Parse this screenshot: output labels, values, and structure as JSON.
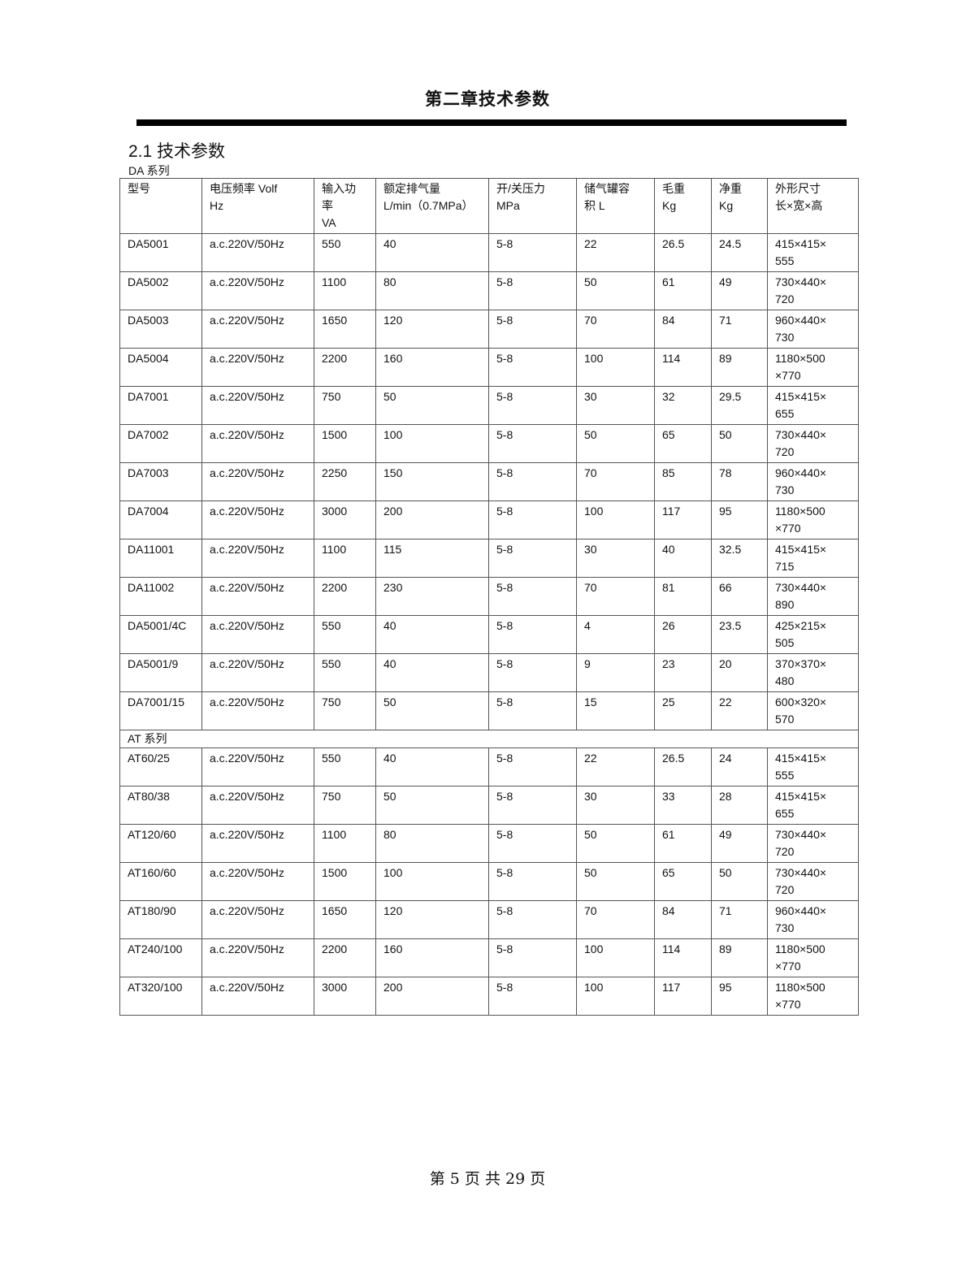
{
  "title": "第二章技术参数",
  "section": "2.1  技术参数",
  "da_series_label": "DA 系列",
  "at_series_label": "AT 系列",
  "headers": [
    "型号",
    "电压频率 Volf\nHz",
    "输入功\n率\nVA",
    "额定排气量\nL/min（0.7MPa）",
    "开/关压力\nMPa",
    "储气罐容\n积 L",
    "毛重\nKg",
    "净重\nKg",
    "外形尺寸\n长×宽×高"
  ],
  "da_rows": [
    [
      "DA5001",
      "a.c.220V/50Hz",
      "550",
      "40",
      "5-8",
      "22",
      "26.5",
      "24.5",
      "415×415×\n555"
    ],
    [
      "DA5002",
      "a.c.220V/50Hz",
      "1100",
      "80",
      "5-8",
      "50",
      "61",
      "49",
      "730×440×\n720"
    ],
    [
      "DA5003",
      "a.c.220V/50Hz",
      "1650",
      "120",
      "5-8",
      "70",
      "84",
      "71",
      "960×440×\n730"
    ],
    [
      "DA5004",
      "a.c.220V/50Hz",
      "2200",
      "160",
      "5-8",
      "100",
      "114",
      "89",
      "1180×500\n×770"
    ],
    [
      "DA7001",
      "a.c.220V/50Hz",
      "750",
      "50",
      "5-8",
      "30",
      "32",
      "29.5",
      "415×415×\n655"
    ],
    [
      "DA7002",
      "a.c.220V/50Hz",
      "1500",
      "100",
      "5-8",
      "50",
      "65",
      "50",
      "730×440×\n720"
    ],
    [
      "DA7003",
      "a.c.220V/50Hz",
      "2250",
      "150",
      "5-8",
      "70",
      "85",
      "78",
      "960×440×\n730"
    ],
    [
      "DA7004",
      "a.c.220V/50Hz",
      "3000",
      "200",
      "5-8",
      "100",
      "117",
      "95",
      "1180×500\n×770"
    ],
    [
      "DA11001",
      "a.c.220V/50Hz",
      "1100",
      "115",
      "5-8",
      "30",
      "40",
      "32.5",
      "415×415×\n715"
    ],
    [
      "DA11002",
      "a.c.220V/50Hz",
      "2200",
      "230",
      "5-8",
      "70",
      "81",
      "66",
      "730×440×\n890"
    ],
    [
      "DA5001/4C",
      "a.c.220V/50Hz",
      "550",
      "40",
      "5-8",
      "4",
      "26",
      "23.5",
      "425×215×\n505"
    ],
    [
      "DA5001/9",
      "a.c.220V/50Hz",
      "550",
      "40",
      "5-8",
      "9",
      "23",
      "20",
      "370×370×\n480"
    ],
    [
      "DA7001/15",
      "a.c.220V/50Hz",
      "750",
      "50",
      "5-8",
      "15",
      "25",
      "22",
      "600×320×\n570"
    ]
  ],
  "at_rows": [
    [
      "AT60/25",
      "a.c.220V/50Hz",
      "550",
      "40",
      "5-8",
      "22",
      "26.5",
      "24",
      "415×415×\n555"
    ],
    [
      "AT80/38",
      "a.c.220V/50Hz",
      "750",
      "50",
      "5-8",
      "30",
      "33",
      "28",
      "415×415×\n655"
    ],
    [
      "AT120/60",
      "a.c.220V/50Hz",
      "1100",
      "80",
      "5-8",
      "50",
      "61",
      "49",
      "730×440×\n720"
    ],
    [
      "AT160/60",
      "a.c.220V/50Hz",
      "1500",
      "100",
      "5-8",
      "50",
      "65",
      "50",
      "730×440×\n720"
    ],
    [
      "AT180/90",
      "a.c.220V/50Hz",
      "1650",
      "120",
      "5-8",
      "70",
      "84",
      "71",
      "960×440×\n730"
    ],
    [
      "AT240/100",
      "a.c.220V/50Hz",
      "2200",
      "160",
      "5-8",
      "100",
      "114",
      "89",
      "1180×500\n×770"
    ],
    [
      "AT320/100",
      "a.c.220V/50Hz",
      "3000",
      "200",
      "5-8",
      "100",
      "117",
      "95",
      "1180×500\n×770"
    ]
  ],
  "footer": "第 5 页    共 29 页"
}
